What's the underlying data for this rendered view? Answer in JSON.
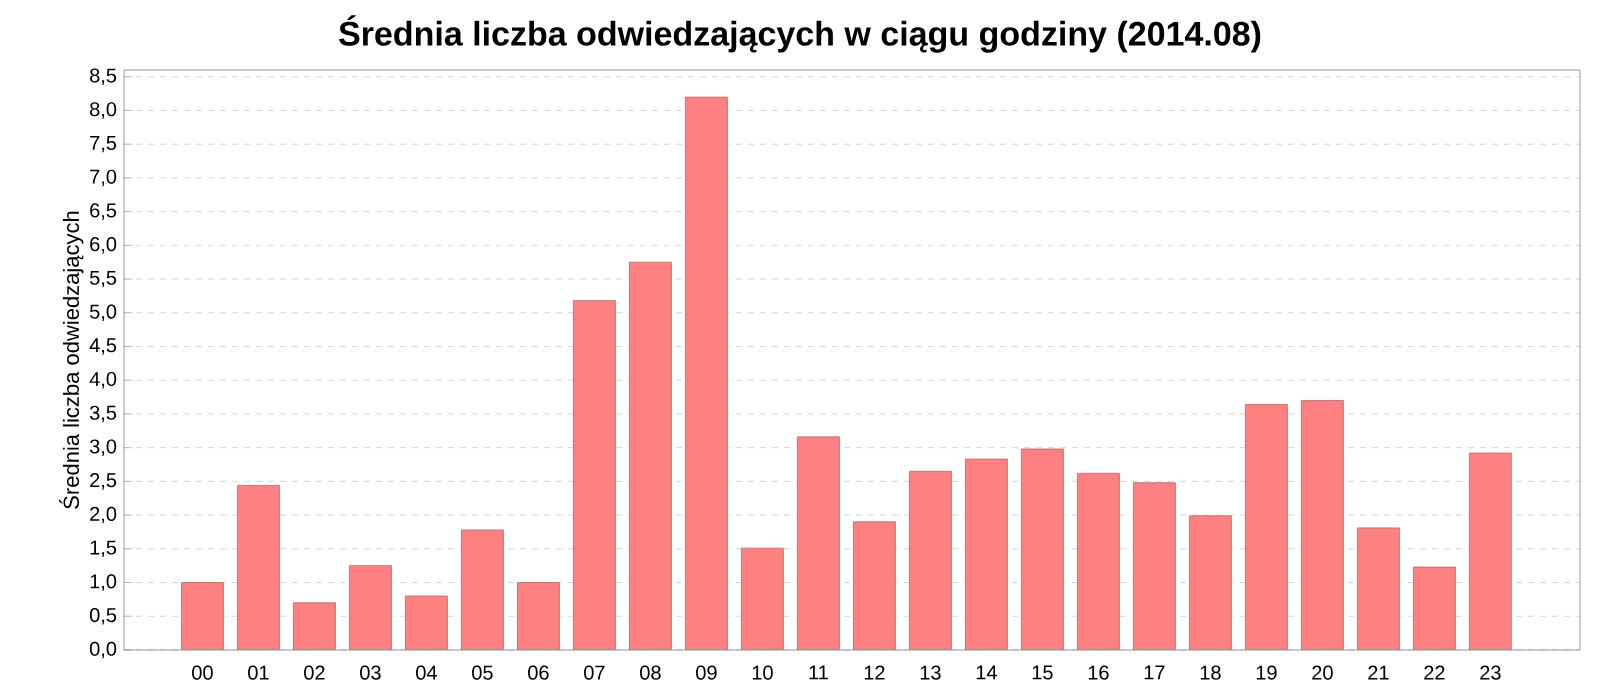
{
  "chart_data": {
    "type": "bar",
    "title": "Średnia liczba odwiedzających w ciągu godziny (2014.08)",
    "ylabel": "Średnia liczba odwiedzających",
    "categories": [
      "00",
      "01",
      "02",
      "03",
      "04",
      "05",
      "06",
      "07",
      "08",
      "09",
      "10",
      "11",
      "12",
      "13",
      "14",
      "15",
      "16",
      "17",
      "18",
      "19",
      "20",
      "21",
      "22",
      "23"
    ],
    "values": [
      1.0,
      2.44,
      0.7,
      1.25,
      0.8,
      1.78,
      1.0,
      5.18,
      5.75,
      8.2,
      1.51,
      3.16,
      1.9,
      2.65,
      2.83,
      2.98,
      2.62,
      2.48,
      1.99,
      3.64,
      3.7,
      1.81,
      1.23,
      2.92
    ],
    "color": "#ff8080",
    "ylim": [
      0,
      8.6
    ],
    "yticks": [
      {
        "value": 0,
        "label": "0,0"
      },
      {
        "value": 0.5,
        "label": "0,5"
      },
      {
        "value": 1,
        "label": "1,0"
      },
      {
        "value": 1.5,
        "label": "1,5"
      },
      {
        "value": 2,
        "label": "2,0"
      },
      {
        "value": 2.5,
        "label": "2,5"
      },
      {
        "value": 3,
        "label": "3,0"
      },
      {
        "value": 3.5,
        "label": "3,5"
      },
      {
        "value": 4,
        "label": "4,0"
      },
      {
        "value": 4.5,
        "label": "4,5"
      },
      {
        "value": 5,
        "label": "5,0"
      },
      {
        "value": 5.5,
        "label": "5,5"
      },
      {
        "value": 6,
        "label": "6,0"
      },
      {
        "value": 6.5,
        "label": "6,5"
      },
      {
        "value": 7,
        "label": "7,0"
      },
      {
        "value": 7.5,
        "label": "7,5"
      },
      {
        "value": 8,
        "label": "8,0"
      },
      {
        "value": 8.5,
        "label": "8,5"
      }
    ],
    "grid": "y"
  }
}
